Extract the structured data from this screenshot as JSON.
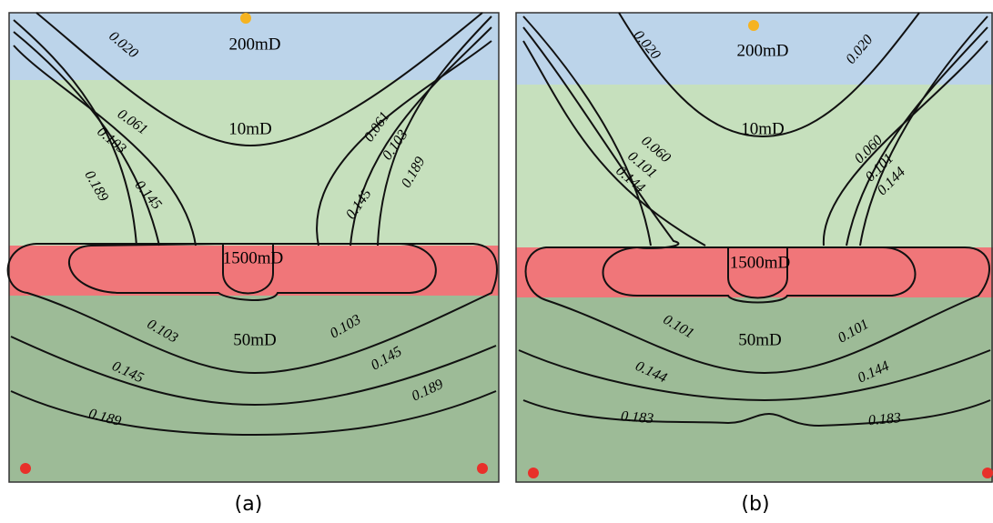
{
  "panels": [
    {
      "caption": "(a)",
      "layers": [
        "200mD",
        "10mD",
        "1500mD",
        "50mD"
      ],
      "contour_labels": [
        "0.020",
        "0.061",
        "0.103",
        "0.189",
        "0.145",
        "0.061",
        "0.103",
        "0.145",
        "0.189",
        "0.103",
        "0.103",
        "0.145",
        "0.145",
        "0.189",
        "0.189"
      ]
    },
    {
      "caption": "(b)",
      "layers": [
        "200mD",
        "10mD",
        "1500mD",
        "50mD"
      ],
      "contour_labels": [
        "0.020",
        "0.020",
        "0.060",
        "0.101",
        "0.144",
        "0.060",
        "0.101",
        "0.144",
        "0.101",
        "0.101",
        "0.144",
        "0.144",
        "0.183",
        "0.183"
      ]
    }
  ]
}
